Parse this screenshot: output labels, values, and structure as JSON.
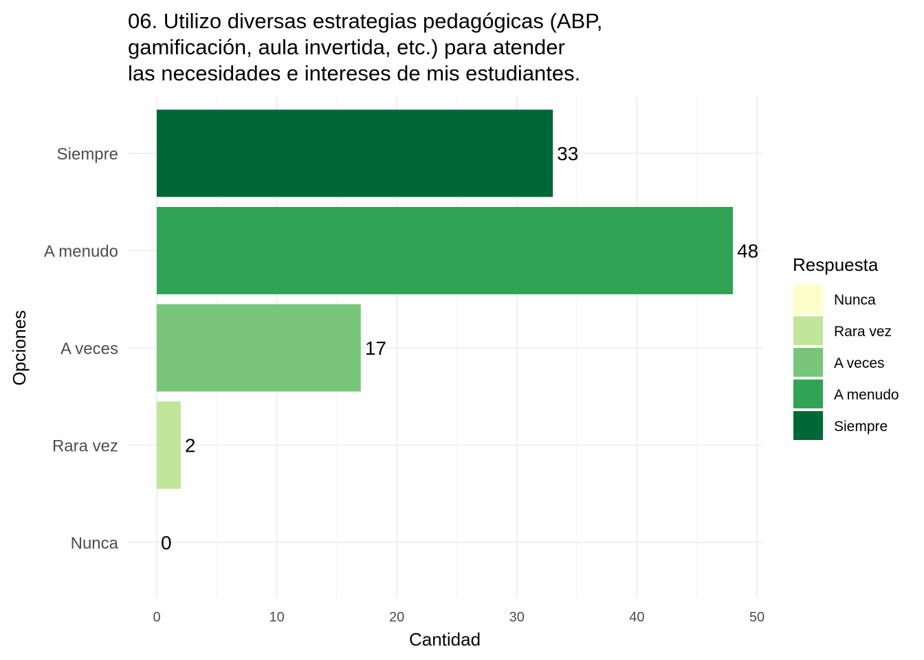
{
  "chart_data": {
    "type": "bar",
    "orientation": "horizontal",
    "title_lines": [
      "06. Utilizo diversas estrategias pedagógicas (ABP,",
      "gamificación, aula invertida, etc.) para atender",
      "las necesidades e intereses de mis estudiantes."
    ],
    "xlabel": "Cantidad",
    "ylabel": "Opciones",
    "categories": [
      "Siempre",
      "A menudo",
      "A veces",
      "Rara vez",
      "Nunca"
    ],
    "values": [
      33,
      48,
      17,
      2,
      0
    ],
    "colors": [
      "#006837",
      "#31a354",
      "#78c679",
      "#c2e699",
      "#ffffcc"
    ],
    "xlim": [
      0,
      50
    ],
    "xticks": [
      0,
      10,
      20,
      30,
      40,
      50
    ],
    "grid": true,
    "legend": {
      "title": "Respuesta",
      "position": "right",
      "entries": [
        {
          "label": "Nunca",
          "color": "#ffffcc"
        },
        {
          "label": "Rara vez",
          "color": "#c2e699"
        },
        {
          "label": "A veces",
          "color": "#78c679"
        },
        {
          "label": "A menudo",
          "color": "#31a354"
        },
        {
          "label": "Siempre",
          "color": "#006837"
        }
      ]
    }
  }
}
